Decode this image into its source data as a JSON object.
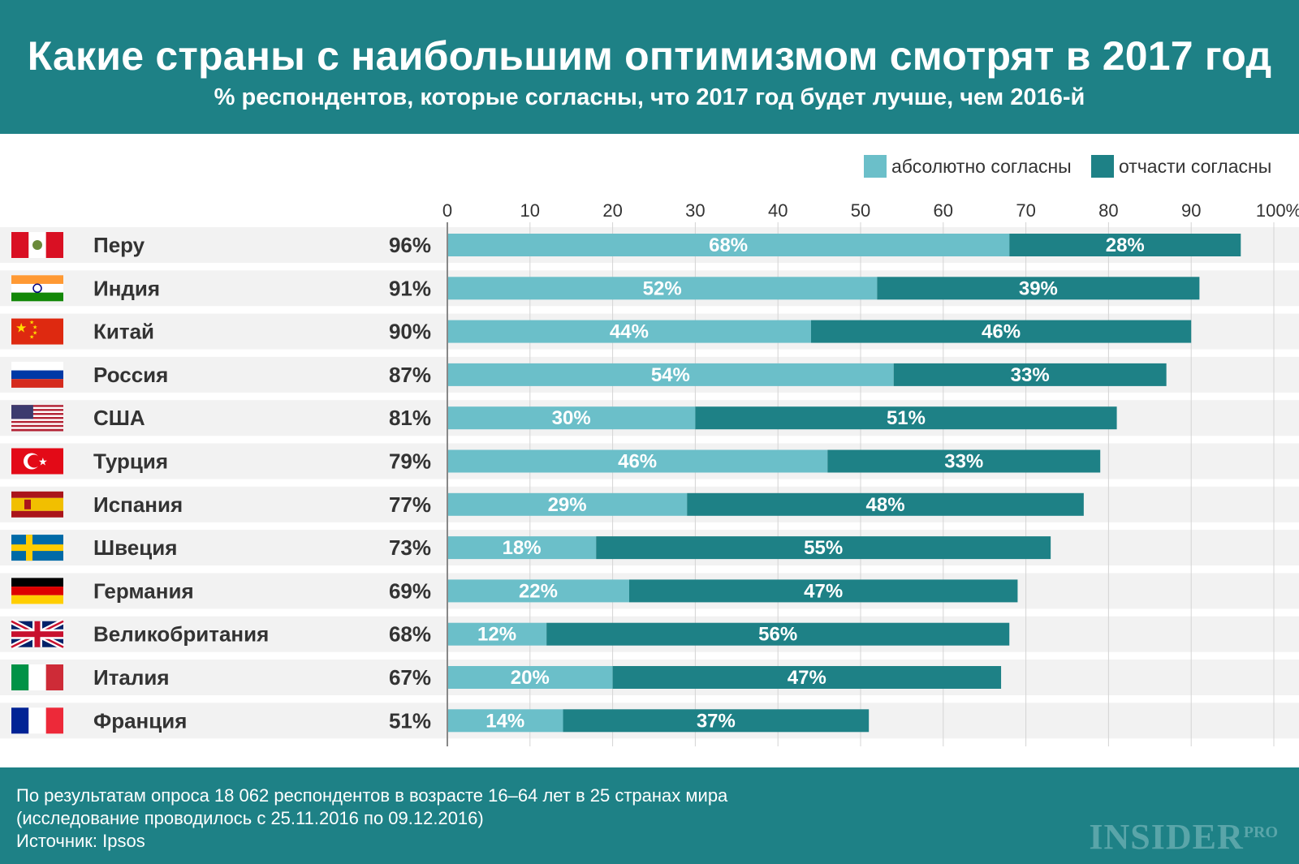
{
  "header": {
    "title": "Какие страны с наибольшим оптимизмом смотрят в 2017 год",
    "subtitle": "% респондентов, которые согласны, что 2017 год будет лучше, чем 2016-й"
  },
  "colors": {
    "header_bg": "#1e8186",
    "absolute": "#6bbfc9",
    "partial": "#1e8186",
    "row_bg": "#f2f2f2",
    "axis": "#888888",
    "grid": "#d4d4d4"
  },
  "chart_data": {
    "type": "bar",
    "orientation": "horizontal",
    "stacked": true,
    "title": "Какие страны с наибольшим оптимизмом смотрят в 2017 год",
    "subtitle": "% респондентов, которые согласны, что 2017 год будет лучше, чем 2016-й",
    "xlim": [
      0,
      100
    ],
    "x_ticks": [
      "0",
      "10",
      "20",
      "30",
      "40",
      "50",
      "60",
      "70",
      "80",
      "90",
      "100%"
    ],
    "grid": true,
    "legend_position": "top-right",
    "categories": [
      "Перу",
      "Индия",
      "Китай",
      "Россия",
      "США",
      "Турция",
      "Испания",
      "Швеция",
      "Германия",
      "Великобритания",
      "Италия",
      "Франция"
    ],
    "flags": [
      "peru-flag",
      "india-flag",
      "china-flag",
      "russia-flag",
      "usa-flag",
      "turkey-flag",
      "spain-flag",
      "sweden-flag",
      "germany-flag",
      "uk-flag",
      "italy-flag",
      "france-flag"
    ],
    "totals": [
      "96%",
      "91%",
      "90%",
      "87%",
      "81%",
      "79%",
      "77%",
      "73%",
      "69%",
      "68%",
      "67%",
      "51%"
    ],
    "series": [
      {
        "name": "абсолютно согласны",
        "values": [
          68,
          52,
          44,
          54,
          30,
          46,
          29,
          18,
          22,
          12,
          20,
          14
        ],
        "labels": [
          "68%",
          "52%",
          "44%",
          "54%",
          "30%",
          "46%",
          "29%",
          "18%",
          "22%",
          "12%",
          "20%",
          "14%"
        ]
      },
      {
        "name": "отчасти согласны",
        "values": [
          28,
          39,
          46,
          33,
          51,
          33,
          48,
          55,
          47,
          56,
          47,
          37
        ],
        "labels": [
          "28%",
          "39%",
          "46%",
          "33%",
          "51%",
          "33%",
          "48%",
          "55%",
          "47%",
          "56%",
          "47%",
          "37%"
        ]
      }
    ]
  },
  "footer": {
    "line1": "По результатам опроса 18 062 респондентов в возрасте 16–64 лет в 25 странах мира",
    "line2": "(исследование проводилось с 25.11.2016 по 09.12.2016)",
    "line3": "Источник: Ipsos",
    "logo_main": "INSIDER",
    "logo_pro": "PRO"
  }
}
